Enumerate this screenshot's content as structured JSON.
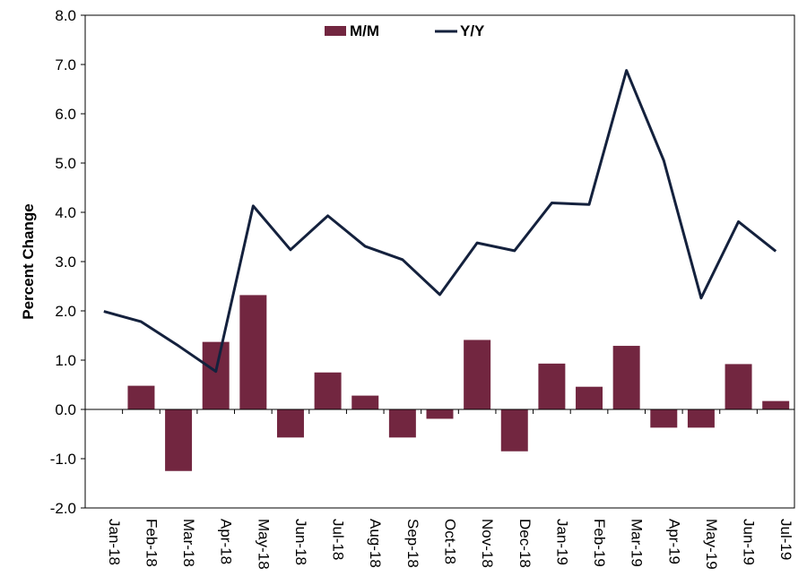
{
  "chart_data": {
    "type": "bar",
    "categories": [
      "Jan-18",
      "Feb-18",
      "Mar-18",
      "Apr-18",
      "May-18",
      "Jun-18",
      "Jul-18",
      "Aug-18",
      "Sep-18",
      "Oct-18",
      "Nov-18",
      "Dec-18",
      "Jan-19",
      "Feb-19",
      "Mar-19",
      "Apr-19",
      "May-19",
      "Jun-19",
      "Jul-19"
    ],
    "series": [
      {
        "name": "M/M",
        "type": "bar",
        "color": "#722640",
        "values": [
          null,
          0.48,
          -1.25,
          1.37,
          2.32,
          -0.57,
          0.75,
          0.28,
          -0.57,
          -0.19,
          1.41,
          -0.85,
          0.93,
          0.46,
          1.29,
          -0.37,
          -0.37,
          0.92,
          0.17
        ]
      },
      {
        "name": "Y/Y",
        "type": "line",
        "color": "#14213d",
        "values": [
          1.99,
          1.78,
          1.29,
          0.77,
          4.13,
          3.24,
          3.93,
          3.31,
          3.04,
          2.33,
          3.38,
          3.22,
          4.19,
          4.16,
          6.88,
          5.05,
          2.26,
          3.81,
          3.21
        ]
      }
    ],
    "ylabel": "Percent Change",
    "ylim": [
      -2.0,
      8.0
    ],
    "yticks": [
      "-2.0",
      "-1.0",
      "0.0",
      "1.0",
      "2.0",
      "3.0",
      "4.0",
      "5.0",
      "6.0",
      "7.0",
      "8.0"
    ],
    "ytick_values": [
      -2,
      -1,
      0,
      1,
      2,
      3,
      4,
      5,
      6,
      7,
      8
    ],
    "grid": false,
    "legend_position": "top-center"
  }
}
